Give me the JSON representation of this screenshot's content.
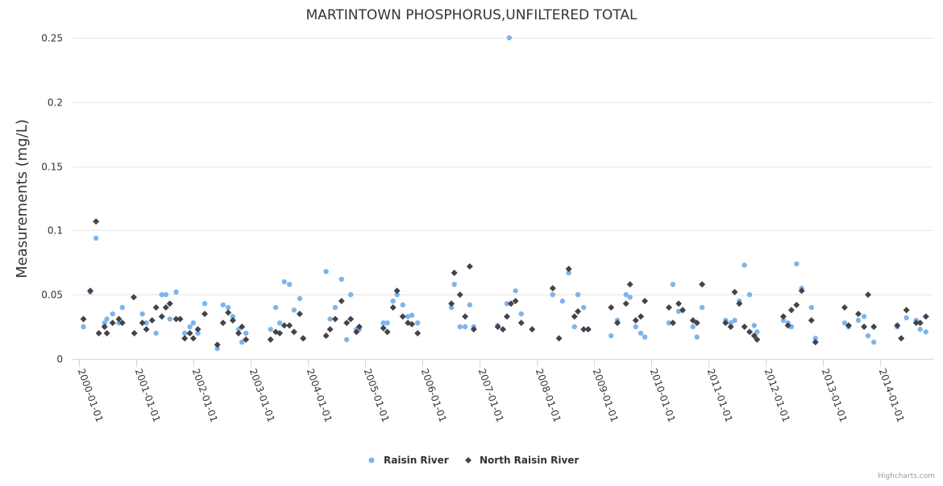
{
  "chart_data": {
    "type": "scatter",
    "title": "MARTINTOWN PHOSPHORUS,UNFILTERED TOTAL",
    "ylabel": "Measurements (mg/L)",
    "xlabel": "",
    "x_unit": "decimal year",
    "xlim": [
      1999.89,
      2014.93
    ],
    "ylim": [
      0,
      0.25
    ],
    "yticks": [
      0,
      0.05,
      0.1,
      0.15,
      0.2,
      0.25
    ],
    "ytick_labels": [
      "0",
      "0.05",
      "0.1",
      "0.15",
      "0.2",
      "0.25"
    ],
    "xticks": [
      2000,
      2001,
      2002,
      2003,
      2004,
      2005,
      2006,
      2007,
      2008,
      2009,
      2010,
      2011,
      2012,
      2013,
      2014
    ],
    "xtick_labels": [
      "2000-01-01",
      "2001-01-01",
      "2002-01-01",
      "2003-01-01",
      "2004-01-01",
      "2005-01-01",
      "2006-01-01",
      "2007-01-01",
      "2008-01-01",
      "2009-01-01",
      "2010-01-01",
      "2011-01-01",
      "2012-01-01",
      "2013-01-01",
      "2014-01-01"
    ],
    "grid": true,
    "legend_position": "bottom-center",
    "series": [
      {
        "name": "Raisin River",
        "color": "#7cb5ec",
        "marker": "circle",
        "points": [
          [
            2000.08,
            0.025
          ],
          [
            2000.2,
            0.052
          ],
          [
            2000.3,
            0.094
          ],
          [
            2000.45,
            0.028
          ],
          [
            2000.49,
            0.031
          ],
          [
            2000.59,
            0.035
          ],
          [
            2000.7,
            0.028
          ],
          [
            2000.76,
            0.04
          ],
          [
            2001.11,
            0.035
          ],
          [
            2001.18,
            0.028
          ],
          [
            2001.35,
            0.02
          ],
          [
            2001.45,
            0.05
          ],
          [
            2001.52,
            0.05
          ],
          [
            2001.59,
            0.031
          ],
          [
            2001.7,
            0.052
          ],
          [
            2001.85,
            0.02
          ],
          [
            2001.94,
            0.025
          ],
          [
            2002.0,
            0.028
          ],
          [
            2002.08,
            0.02
          ],
          [
            2002.2,
            0.043
          ],
          [
            2002.42,
            0.008
          ],
          [
            2002.52,
            0.042
          ],
          [
            2002.61,
            0.04
          ],
          [
            2002.69,
            0.033
          ],
          [
            2002.79,
            0.023
          ],
          [
            2002.85,
            0.013
          ],
          [
            2002.92,
            0.02
          ],
          [
            2003.35,
            0.023
          ],
          [
            2003.44,
            0.04
          ],
          [
            2003.51,
            0.028
          ],
          [
            2003.59,
            0.06
          ],
          [
            2003.68,
            0.058
          ],
          [
            2003.76,
            0.038
          ],
          [
            2003.86,
            0.047
          ],
          [
            2003.92,
            0.016
          ],
          [
            2004.32,
            0.068
          ],
          [
            2004.39,
            0.031
          ],
          [
            2004.48,
            0.04
          ],
          [
            2004.59,
            0.062
          ],
          [
            2004.68,
            0.015
          ],
          [
            2004.75,
            0.05
          ],
          [
            2004.85,
            0.023
          ],
          [
            2004.9,
            0.023
          ],
          [
            2005.32,
            0.028
          ],
          [
            2005.39,
            0.028
          ],
          [
            2005.49,
            0.045
          ],
          [
            2005.56,
            0.05
          ],
          [
            2005.66,
            0.042
          ],
          [
            2005.75,
            0.033
          ],
          [
            2005.82,
            0.034
          ],
          [
            2005.92,
            0.028
          ],
          [
            2006.51,
            0.04
          ],
          [
            2006.56,
            0.058
          ],
          [
            2006.66,
            0.025
          ],
          [
            2006.75,
            0.025
          ],
          [
            2006.83,
            0.042
          ],
          [
            2006.9,
            0.025
          ],
          [
            2007.32,
            0.026
          ],
          [
            2007.48,
            0.043
          ],
          [
            2007.52,
            0.25
          ],
          [
            2007.63,
            0.053
          ],
          [
            2007.73,
            0.035
          ],
          [
            2008.28,
            0.05
          ],
          [
            2008.45,
            0.045
          ],
          [
            2008.56,
            0.067
          ],
          [
            2008.66,
            0.025
          ],
          [
            2008.72,
            0.05
          ],
          [
            2008.82,
            0.04
          ],
          [
            2008.9,
            0.023
          ],
          [
            2009.3,
            0.018
          ],
          [
            2009.41,
            0.03
          ],
          [
            2009.56,
            0.05
          ],
          [
            2009.63,
            0.048
          ],
          [
            2009.73,
            0.025
          ],
          [
            2009.82,
            0.02
          ],
          [
            2009.89,
            0.017
          ],
          [
            2010.31,
            0.028
          ],
          [
            2010.38,
            0.058
          ],
          [
            2010.48,
            0.037
          ],
          [
            2010.55,
            0.038
          ],
          [
            2010.73,
            0.025
          ],
          [
            2010.8,
            0.017
          ],
          [
            2010.89,
            0.04
          ],
          [
            2011.3,
            0.03
          ],
          [
            2011.39,
            0.028
          ],
          [
            2011.46,
            0.03
          ],
          [
            2011.54,
            0.045
          ],
          [
            2011.63,
            0.073
          ],
          [
            2011.72,
            0.05
          ],
          [
            2011.8,
            0.026
          ],
          [
            2011.85,
            0.021
          ],
          [
            2012.31,
            0.03
          ],
          [
            2012.39,
            0.028
          ],
          [
            2012.45,
            0.025
          ],
          [
            2012.54,
            0.074
          ],
          [
            2012.63,
            0.055
          ],
          [
            2012.8,
            0.04
          ],
          [
            2012.87,
            0.016
          ],
          [
            2013.38,
            0.028
          ],
          [
            2013.45,
            0.025
          ],
          [
            2013.62,
            0.03
          ],
          [
            2013.72,
            0.033
          ],
          [
            2013.79,
            0.018
          ],
          [
            2013.89,
            0.013
          ],
          [
            2014.3,
            0.025
          ],
          [
            2014.46,
            0.032
          ],
          [
            2014.63,
            0.03
          ],
          [
            2014.7,
            0.023
          ],
          [
            2014.8,
            0.021
          ]
        ]
      },
      {
        "name": "North Raisin River",
        "color": "#434348",
        "marker": "diamond",
        "points": [
          [
            2000.08,
            0.031
          ],
          [
            2000.2,
            0.053
          ],
          [
            2000.3,
            0.107
          ],
          [
            2000.35,
            0.02
          ],
          [
            2000.45,
            0.025
          ],
          [
            2000.49,
            0.02
          ],
          [
            2000.59,
            0.028
          ],
          [
            2000.7,
            0.031
          ],
          [
            2000.76,
            0.028
          ],
          [
            2000.96,
            0.048
          ],
          [
            2000.97,
            0.02
          ],
          [
            2001.11,
            0.028
          ],
          [
            2001.18,
            0.023
          ],
          [
            2001.28,
            0.03
          ],
          [
            2001.35,
            0.04
          ],
          [
            2001.45,
            0.033
          ],
          [
            2001.52,
            0.04
          ],
          [
            2001.59,
            0.043
          ],
          [
            2001.7,
            0.031
          ],
          [
            2001.77,
            0.031
          ],
          [
            2001.85,
            0.016
          ],
          [
            2001.94,
            0.02
          ],
          [
            2002.0,
            0.016
          ],
          [
            2002.08,
            0.023
          ],
          [
            2002.2,
            0.035
          ],
          [
            2002.42,
            0.011
          ],
          [
            2002.52,
            0.028
          ],
          [
            2002.61,
            0.036
          ],
          [
            2002.69,
            0.03
          ],
          [
            2002.79,
            0.02
          ],
          [
            2002.85,
            0.025
          ],
          [
            2002.92,
            0.015
          ],
          [
            2003.35,
            0.015
          ],
          [
            2003.44,
            0.021
          ],
          [
            2003.51,
            0.02
          ],
          [
            2003.59,
            0.026
          ],
          [
            2003.68,
            0.026
          ],
          [
            2003.76,
            0.021
          ],
          [
            2003.86,
            0.035
          ],
          [
            2003.92,
            0.016
          ],
          [
            2004.32,
            0.018
          ],
          [
            2004.39,
            0.023
          ],
          [
            2004.48,
            0.031
          ],
          [
            2004.59,
            0.045
          ],
          [
            2004.68,
            0.028
          ],
          [
            2004.75,
            0.031
          ],
          [
            2004.85,
            0.021
          ],
          [
            2004.9,
            0.025
          ],
          [
            2005.32,
            0.024
          ],
          [
            2005.39,
            0.021
          ],
          [
            2005.49,
            0.04
          ],
          [
            2005.56,
            0.053
          ],
          [
            2005.66,
            0.033
          ],
          [
            2005.75,
            0.028
          ],
          [
            2005.82,
            0.027
          ],
          [
            2005.92,
            0.02
          ],
          [
            2006.51,
            0.043
          ],
          [
            2006.56,
            0.067
          ],
          [
            2006.66,
            0.05
          ],
          [
            2006.75,
            0.033
          ],
          [
            2006.83,
            0.072
          ],
          [
            2006.9,
            0.023
          ],
          [
            2007.32,
            0.025
          ],
          [
            2007.41,
            0.023
          ],
          [
            2007.48,
            0.033
          ],
          [
            2007.55,
            0.043
          ],
          [
            2007.63,
            0.045
          ],
          [
            2007.73,
            0.028
          ],
          [
            2007.92,
            0.023
          ],
          [
            2008.28,
            0.055
          ],
          [
            2008.39,
            0.016
          ],
          [
            2008.56,
            0.07
          ],
          [
            2008.66,
            0.033
          ],
          [
            2008.72,
            0.037
          ],
          [
            2008.82,
            0.023
          ],
          [
            2008.9,
            0.023
          ],
          [
            2009.3,
            0.04
          ],
          [
            2009.41,
            0.028
          ],
          [
            2009.56,
            0.043
          ],
          [
            2009.63,
            0.058
          ],
          [
            2009.73,
            0.03
          ],
          [
            2009.82,
            0.033
          ],
          [
            2009.89,
            0.045
          ],
          [
            2010.31,
            0.04
          ],
          [
            2010.38,
            0.028
          ],
          [
            2010.48,
            0.043
          ],
          [
            2010.55,
            0.038
          ],
          [
            2010.73,
            0.03
          ],
          [
            2010.8,
            0.028
          ],
          [
            2010.89,
            0.058
          ],
          [
            2011.3,
            0.028
          ],
          [
            2011.39,
            0.025
          ],
          [
            2011.46,
            0.052
          ],
          [
            2011.54,
            0.043
          ],
          [
            2011.63,
            0.025
          ],
          [
            2011.72,
            0.021
          ],
          [
            2011.8,
            0.018
          ],
          [
            2011.85,
            0.015
          ],
          [
            2012.31,
            0.033
          ],
          [
            2012.39,
            0.026
          ],
          [
            2012.45,
            0.038
          ],
          [
            2012.54,
            0.042
          ],
          [
            2012.63,
            0.053
          ],
          [
            2012.8,
            0.03
          ],
          [
            2012.87,
            0.013
          ],
          [
            2013.38,
            0.04
          ],
          [
            2013.45,
            0.026
          ],
          [
            2013.62,
            0.035
          ],
          [
            2013.72,
            0.025
          ],
          [
            2013.79,
            0.05
          ],
          [
            2013.89,
            0.025
          ],
          [
            2014.3,
            0.026
          ],
          [
            2014.37,
            0.016
          ],
          [
            2014.46,
            0.038
          ],
          [
            2014.63,
            0.028
          ],
          [
            2014.7,
            0.028
          ],
          [
            2014.8,
            0.033
          ]
        ]
      }
    ]
  },
  "credit": "Highcharts.com"
}
